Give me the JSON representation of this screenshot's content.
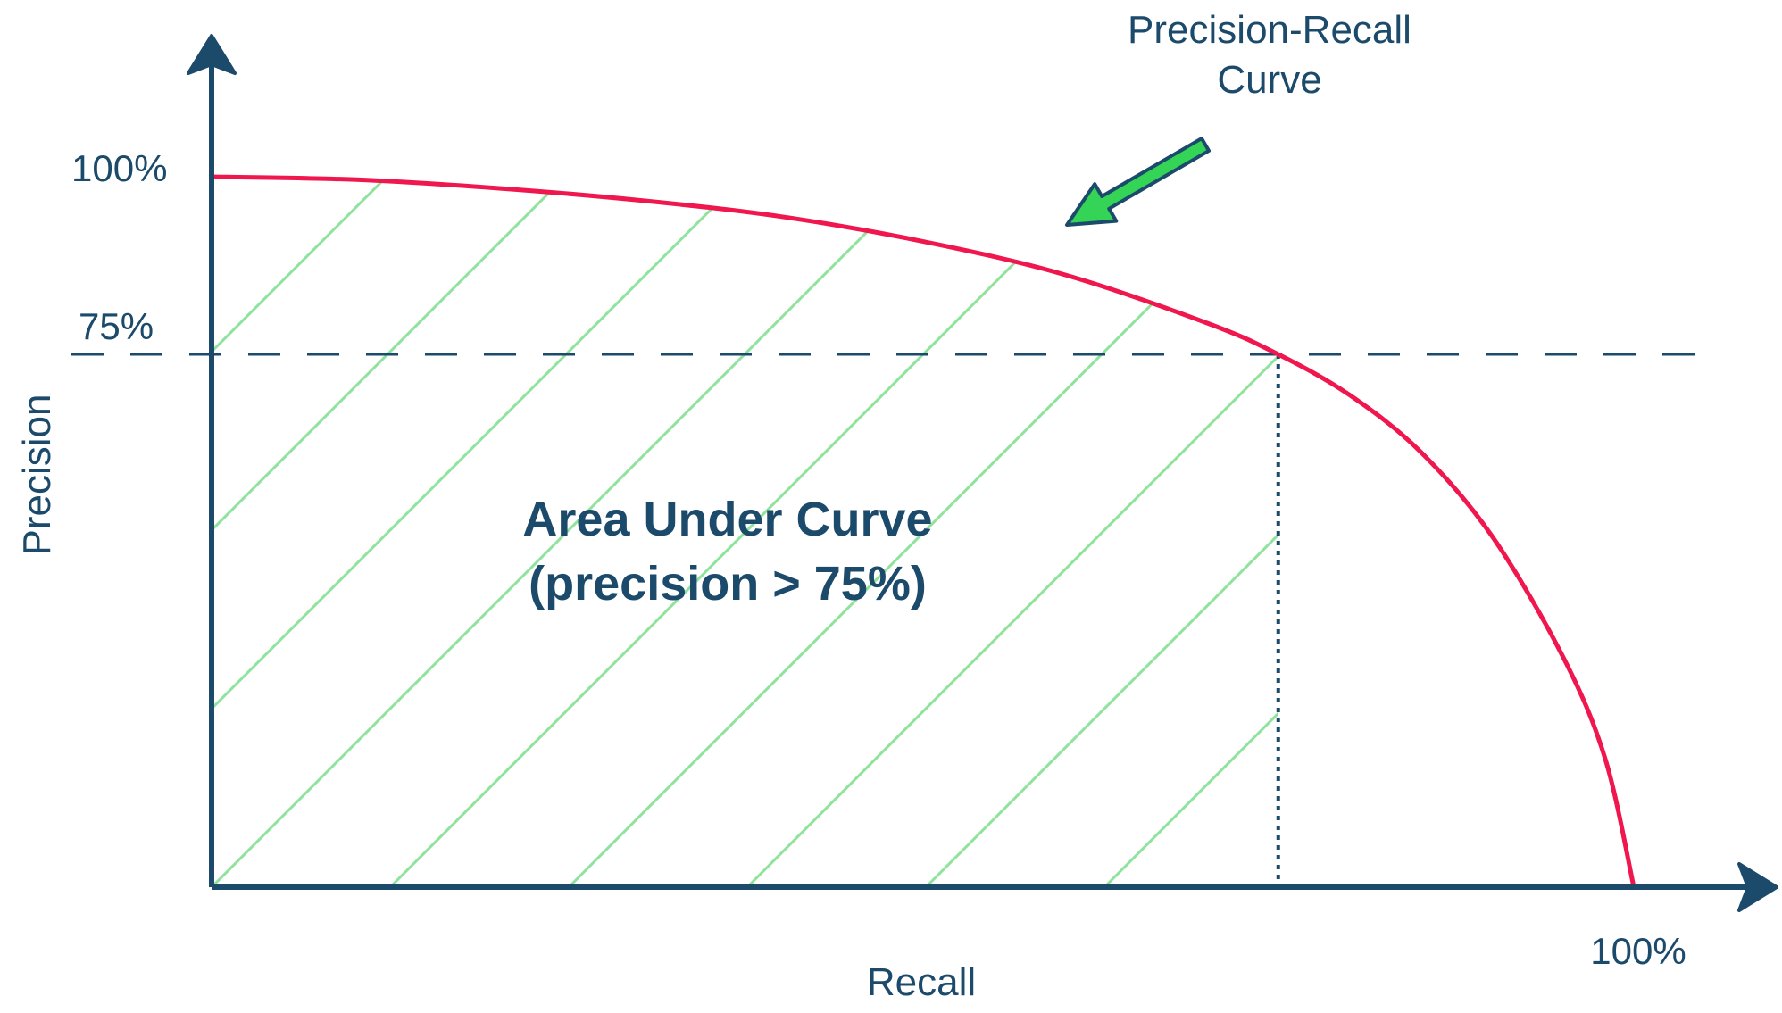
{
  "chart_data": {
    "type": "area",
    "title": "",
    "xlabel": "Recall",
    "ylabel": "Precision",
    "xlim": [
      0,
      100
    ],
    "ylim": [
      0,
      100
    ],
    "grid": false,
    "x_tick_labels": [
      "100%"
    ],
    "y_tick_labels": [
      "100%",
      "75%"
    ],
    "threshold": {
      "precision": 75,
      "recall_at_threshold": 75
    },
    "series": [
      {
        "values": [
          {
            "x": 0,
            "y": 100
          },
          {
            "x": 10,
            "y": 99.6
          },
          {
            "x": 20,
            "y": 98.4
          },
          {
            "x": 30,
            "y": 96.7
          },
          {
            "x": 40,
            "y": 94.4
          },
          {
            "x": 50,
            "y": 90.9
          },
          {
            "x": 60,
            "y": 86.2
          },
          {
            "x": 70,
            "y": 79.4
          },
          {
            "x": 75,
            "y": 75
          },
          {
            "x": 80,
            "y": 69.3
          },
          {
            "x": 85,
            "y": 61.3
          },
          {
            "x": 90,
            "y": 49.5
          },
          {
            "x": 95,
            "y": 32.5
          },
          {
            "x": 98,
            "y": 18
          },
          {
            "x": 100,
            "y": 0
          }
        ]
      }
    ],
    "annotations": {
      "curve_label_line1": "Precision-Recall",
      "curve_label_line2": "Curve",
      "area_label_line1": "Area Under Curve",
      "area_label_line2": "(precision > 75%)"
    },
    "colors": {
      "axis": "#1c4a6b",
      "curve": "#f0164e",
      "hatch": "#8fe39c",
      "arrow_fill": "#34d457",
      "text": "#1c4a6b"
    }
  }
}
